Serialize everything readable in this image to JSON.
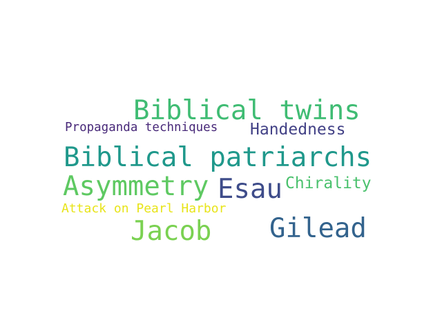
{
  "words": [
    {
      "id": "w-biblical-twins",
      "text": "Biblical twins",
      "color": "#3fbc73"
    },
    {
      "id": "w-propaganda",
      "text": "Propaganda techniques",
      "color": "#482979"
    },
    {
      "id": "w-handedness",
      "text": "Handedness",
      "color": "#424186"
    },
    {
      "id": "w-biblical-patriarchs",
      "text": "Biblical patriarchs",
      "color": "#1f988b"
    },
    {
      "id": "w-asymmetry",
      "text": "Asymmetry",
      "color": "#5ec962"
    },
    {
      "id": "w-esau",
      "text": "Esau",
      "color": "#3e4c8a"
    },
    {
      "id": "w-chirality",
      "text": "Chirality",
      "color": "#4ac16d"
    },
    {
      "id": "w-pearl-harbor",
      "text": "Attack on Pearl Harbor",
      "color": "#e8e419"
    },
    {
      "id": "w-jacob",
      "text": "Jacob",
      "color": "#7ad151"
    },
    {
      "id": "w-gilead",
      "text": "Gilead",
      "color": "#33638d"
    }
  ]
}
